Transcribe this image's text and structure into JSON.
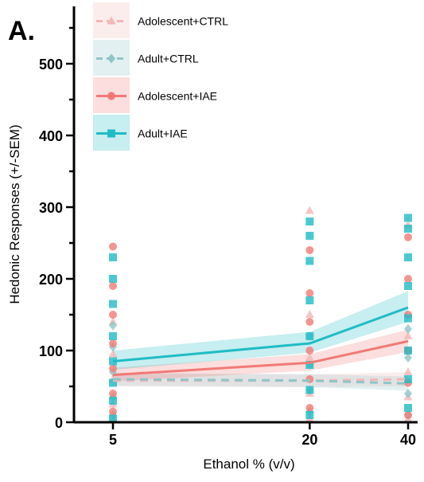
{
  "panel_label": "A.",
  "chart_data": {
    "type": "scatter",
    "title": "",
    "xlabel": "Ethanol % (v/v)",
    "ylabel": "Hedonic Responses (+/-SEM)",
    "x_ticks": [
      5,
      20,
      40
    ],
    "y_ticks": [
      0,
      100,
      200,
      300,
      400,
      500
    ],
    "xlim": [
      1,
      42
    ],
    "ylim": [
      0,
      580
    ],
    "grid": false,
    "legend_position": "top-left",
    "series": [
      {
        "name": "Adolescent+CTRL",
        "color": "#f4b6b6",
        "marker": "triangle",
        "line_style": "dashed",
        "fit": {
          "x": [
            5,
            20,
            40
          ],
          "y": [
            58,
            58,
            60
          ]
        },
        "band": {
          "lower": [
            50,
            49,
            50
          ],
          "upper": [
            67,
            67,
            70
          ]
        },
        "points": [
          {
            "x": 5,
            "y": 5
          },
          {
            "x": 5,
            "y": 25
          },
          {
            "x": 5,
            "y": 60
          },
          {
            "x": 5,
            "y": 95
          },
          {
            "x": 5,
            "y": 140
          },
          {
            "x": 20,
            "y": 5
          },
          {
            "x": 20,
            "y": 40
          },
          {
            "x": 20,
            "y": 90
          },
          {
            "x": 20,
            "y": 150
          },
          {
            "x": 20,
            "y": 295
          },
          {
            "x": 40,
            "y": 5
          },
          {
            "x": 40,
            "y": 35
          },
          {
            "x": 40,
            "y": 70
          },
          {
            "x": 40,
            "y": 120
          },
          {
            "x": 40,
            "y": 275
          }
        ]
      },
      {
        "name": "Adult+CTRL",
        "color": "#8fc5c8",
        "marker": "diamond",
        "line_style": "dashed",
        "fit": {
          "x": [
            5,
            20,
            40
          ],
          "y": [
            60,
            58,
            54
          ]
        },
        "band": {
          "lower": [
            51,
            49,
            44
          ],
          "upper": [
            69,
            67,
            64
          ]
        },
        "points": [
          {
            "x": 5,
            "y": 10
          },
          {
            "x": 5,
            "y": 35
          },
          {
            "x": 5,
            "y": 70
          },
          {
            "x": 5,
            "y": 105
          },
          {
            "x": 5,
            "y": 135
          },
          {
            "x": 20,
            "y": 15
          },
          {
            "x": 20,
            "y": 45
          },
          {
            "x": 20,
            "y": 80
          },
          {
            "x": 20,
            "y": 120
          },
          {
            "x": 40,
            "y": 10
          },
          {
            "x": 40,
            "y": 40
          },
          {
            "x": 40,
            "y": 90
          },
          {
            "x": 40,
            "y": 130
          }
        ]
      },
      {
        "name": "Adolescent+IAE",
        "color": "#f07a76",
        "marker": "circle",
        "line_style": "solid",
        "fit": {
          "x": [
            5,
            20,
            40
          ],
          "y": [
            66,
            83,
            113
          ]
        },
        "band": {
          "lower": [
            57,
            72,
            98
          ],
          "upper": [
            76,
            95,
            129
          ]
        },
        "points": [
          {
            "x": 5,
            "y": 15
          },
          {
            "x": 5,
            "y": 40
          },
          {
            "x": 5,
            "y": 75
          },
          {
            "x": 5,
            "y": 110
          },
          {
            "x": 5,
            "y": 150
          },
          {
            "x": 5,
            "y": 190
          },
          {
            "x": 5,
            "y": 245
          },
          {
            "x": 20,
            "y": 20
          },
          {
            "x": 20,
            "y": 60
          },
          {
            "x": 20,
            "y": 100
          },
          {
            "x": 20,
            "y": 140
          },
          {
            "x": 20,
            "y": 180
          },
          {
            "x": 20,
            "y": 240
          },
          {
            "x": 40,
            "y": 10
          },
          {
            "x": 40,
            "y": 55
          },
          {
            "x": 40,
            "y": 100
          },
          {
            "x": 40,
            "y": 150
          },
          {
            "x": 40,
            "y": 200
          },
          {
            "x": 40,
            "y": 258
          }
        ]
      },
      {
        "name": "Adult+IAE",
        "color": "#1fbcc4",
        "marker": "square",
        "line_style": "solid",
        "fit": {
          "x": [
            5,
            20,
            40
          ],
          "y": [
            85,
            110,
            160
          ]
        },
        "band": {
          "lower": [
            73,
            97,
            140
          ],
          "upper": [
            100,
            126,
            183
          ]
        },
        "points": [
          {
            "x": 5,
            "y": 5
          },
          {
            "x": 5,
            "y": 30
          },
          {
            "x": 5,
            "y": 55
          },
          {
            "x": 5,
            "y": 85
          },
          {
            "x": 5,
            "y": 120
          },
          {
            "x": 5,
            "y": 165
          },
          {
            "x": 5,
            "y": 200
          },
          {
            "x": 5,
            "y": 230
          },
          {
            "x": 20,
            "y": 10
          },
          {
            "x": 20,
            "y": 45
          },
          {
            "x": 20,
            "y": 80
          },
          {
            "x": 20,
            "y": 120
          },
          {
            "x": 20,
            "y": 170
          },
          {
            "x": 20,
            "y": 225
          },
          {
            "x": 20,
            "y": 260
          },
          {
            "x": 20,
            "y": 280
          },
          {
            "x": 40,
            "y": 20
          },
          {
            "x": 40,
            "y": 60
          },
          {
            "x": 40,
            "y": 100
          },
          {
            "x": 40,
            "y": 145
          },
          {
            "x": 40,
            "y": 190
          },
          {
            "x": 40,
            "y": 230
          },
          {
            "x": 40,
            "y": 270
          },
          {
            "x": 40,
            "y": 285
          }
        ]
      }
    ]
  }
}
